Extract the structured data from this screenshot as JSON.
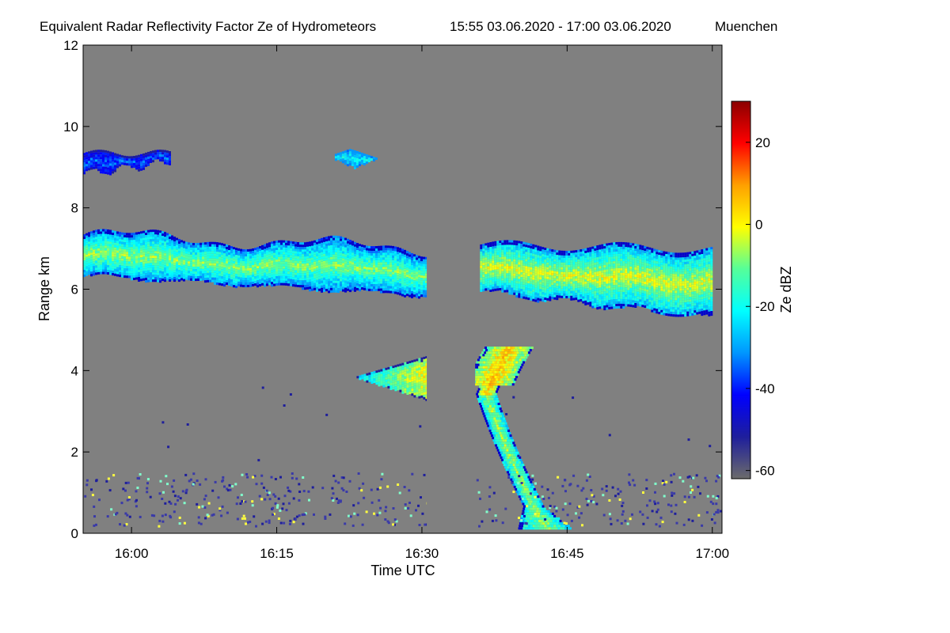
{
  "chart_data": {
    "type": "heatmap",
    "title": "Equivalent Radar Reflectivity Factor Ze of Hydrometeors",
    "time_range": "15:55 03.06.2020 - 17:00 03.06.2020",
    "location": "Muenchen",
    "xlabel": "Time UTC",
    "ylabel": "Range km",
    "x_start": "15:55",
    "x_end": "17:00",
    "xlim_minutes": [
      955,
      1021
    ],
    "x_ticks": [
      {
        "minute": 960,
        "label": "16:00"
      },
      {
        "minute": 975,
        "label": "16:15"
      },
      {
        "minute": 990,
        "label": "16:30"
      },
      {
        "minute": 1005,
        "label": "16:45"
      },
      {
        "minute": 1020,
        "label": "17:00"
      }
    ],
    "ylim": [
      0,
      12
    ],
    "y_ticks": [
      0,
      2,
      4,
      6,
      8,
      10,
      12
    ],
    "background_color": "#808080",
    "colorbar": {
      "label": "Ze dBZ",
      "range": [
        -62,
        30
      ],
      "ticks": [
        20,
        0,
        -20,
        -40,
        -60
      ],
      "colors": [
        "#6b6b6b",
        "#1e1e9c",
        "#0000ff",
        "#0096ff",
        "#00ffff",
        "#55ff99",
        "#ffff00",
        "#ffa000",
        "#ff0000",
        "#8b0000"
      ]
    },
    "data_gap": {
      "start_minute": 990.5,
      "end_minute": 995.5
    },
    "features": [
      {
        "name": "upper-cirrus-cloud",
        "time_start": "15:55",
        "time_end": "16:31",
        "range_km": [
          5.8,
          7.8
        ],
        "ze_dbz_range": [
          -40,
          -5
        ]
      },
      {
        "name": "upper-cirrus-cloud-2",
        "time_start": "16:36",
        "time_end": "17:00",
        "range_km": [
          5.2,
          7.2
        ],
        "ze_dbz_range": [
          -40,
          -5
        ]
      },
      {
        "name": "high-ice-patch-left",
        "time_start": "15:55",
        "time_end": "16:04",
        "range_km": [
          8.8,
          9.5
        ],
        "ze_dbz_range": [
          -50,
          -35
        ]
      },
      {
        "name": "high-ice-patch",
        "time_start": "16:21",
        "time_end": "16:26",
        "range_km": [
          8.9,
          9.5
        ],
        "ze_dbz_range": [
          -30,
          -20
        ]
      },
      {
        "name": "mid-level-precipitation",
        "time_start": "16:23",
        "time_end": "16:31",
        "range_km": [
          3.2,
          4.4
        ],
        "ze_dbz_range": [
          -30,
          0
        ]
      },
      {
        "name": "precipitation-fall-streak",
        "time_start": "16:36",
        "time_end": "16:43",
        "range_km": [
          0.1,
          4.7
        ],
        "ze_dbz_range": [
          -45,
          5
        ]
      },
      {
        "name": "boundary-layer-clutter",
        "time_start": "15:55",
        "time_end": "17:00",
        "range_km": [
          0.2,
          1.5
        ],
        "ze_dbz_range": [
          -60,
          -5
        ]
      }
    ]
  }
}
